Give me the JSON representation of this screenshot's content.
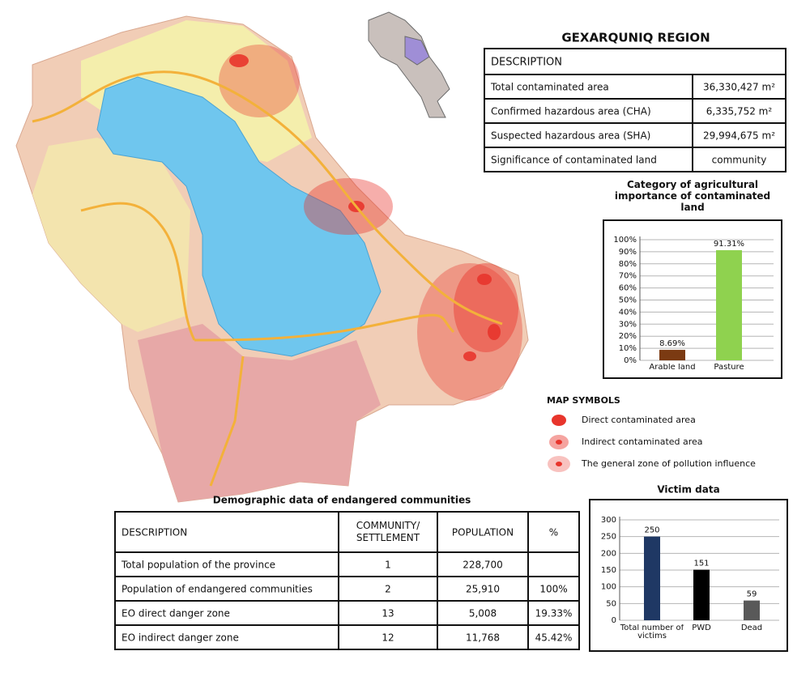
{
  "title": "GEXARQUNIQ REGION",
  "description_table": {
    "header": "DESCRIPTION",
    "rows": [
      [
        "Total contaminated area",
        "36,330,427 m²"
      ],
      [
        "Confirmed hazardous area (CHA)",
        "6,335,752 m²"
      ],
      [
        "Suspected hazardous area (SHA)",
        "29,994,675 m²"
      ],
      [
        "Significance of contaminated land",
        "community"
      ]
    ]
  },
  "chart_data": [
    {
      "type": "bar",
      "title": "Category of agricultural importance of contaminated land",
      "categories": [
        "Arable land",
        "Pasture"
      ],
      "values": [
        8.69,
        91.31
      ],
      "value_labels": [
        "8.69%",
        "91.31%"
      ],
      "colors": [
        "#7b3a12",
        "#8fd24f"
      ],
      "ylim": [
        0,
        100
      ],
      "yticks": [
        {
          "value": 0,
          "label": "0%"
        },
        {
          "value": 10,
          "label": "10%"
        },
        {
          "value": 20,
          "label": "20%"
        },
        {
          "value": 30,
          "label": "30%"
        },
        {
          "value": 40,
          "label": "40%"
        },
        {
          "value": 50,
          "label": "50%"
        },
        {
          "value": 60,
          "label": "60%"
        },
        {
          "value": 70,
          "label": "70%"
        },
        {
          "value": 80,
          "label": "80%"
        },
        {
          "value": 90,
          "label": "90%"
        },
        {
          "value": 100,
          "label": "100%"
        }
      ],
      "grid": true
    },
    {
      "type": "bar",
      "title": "Victim data",
      "categories": [
        "Total number of victims",
        "PWD",
        "Dead"
      ],
      "values": [
        250,
        151,
        59
      ],
      "colors": [
        "#1f3864",
        "#000000",
        "#595959"
      ],
      "ylim": [
        0,
        300
      ],
      "yticks": [
        0,
        50,
        100,
        150,
        200,
        250,
        300
      ],
      "grid": true
    }
  ],
  "map_symbols": {
    "title": "MAP SYMBOLS",
    "items": [
      "Direct contaminated area",
      "Indirect contaminated area",
      "The general zone of pollution influence"
    ]
  },
  "demographic_table": {
    "title": "Demographic data of endangered communities",
    "header": [
      "DESCRIPTION",
      [
        "COMMUNITY/",
        "SETTLEMENT"
      ],
      "POPULATION",
      "%"
    ],
    "rows": [
      [
        "Total population of the province",
        "1",
        "228,700",
        null
      ],
      [
        "Population of endangered communities",
        "2",
        "25,910",
        "100%"
      ],
      [
        "EO direct danger zone",
        "13",
        "5,008",
        "19.33%"
      ],
      [
        "EO indirect danger zone",
        "12",
        "11,768",
        "45.42%"
      ]
    ]
  }
}
